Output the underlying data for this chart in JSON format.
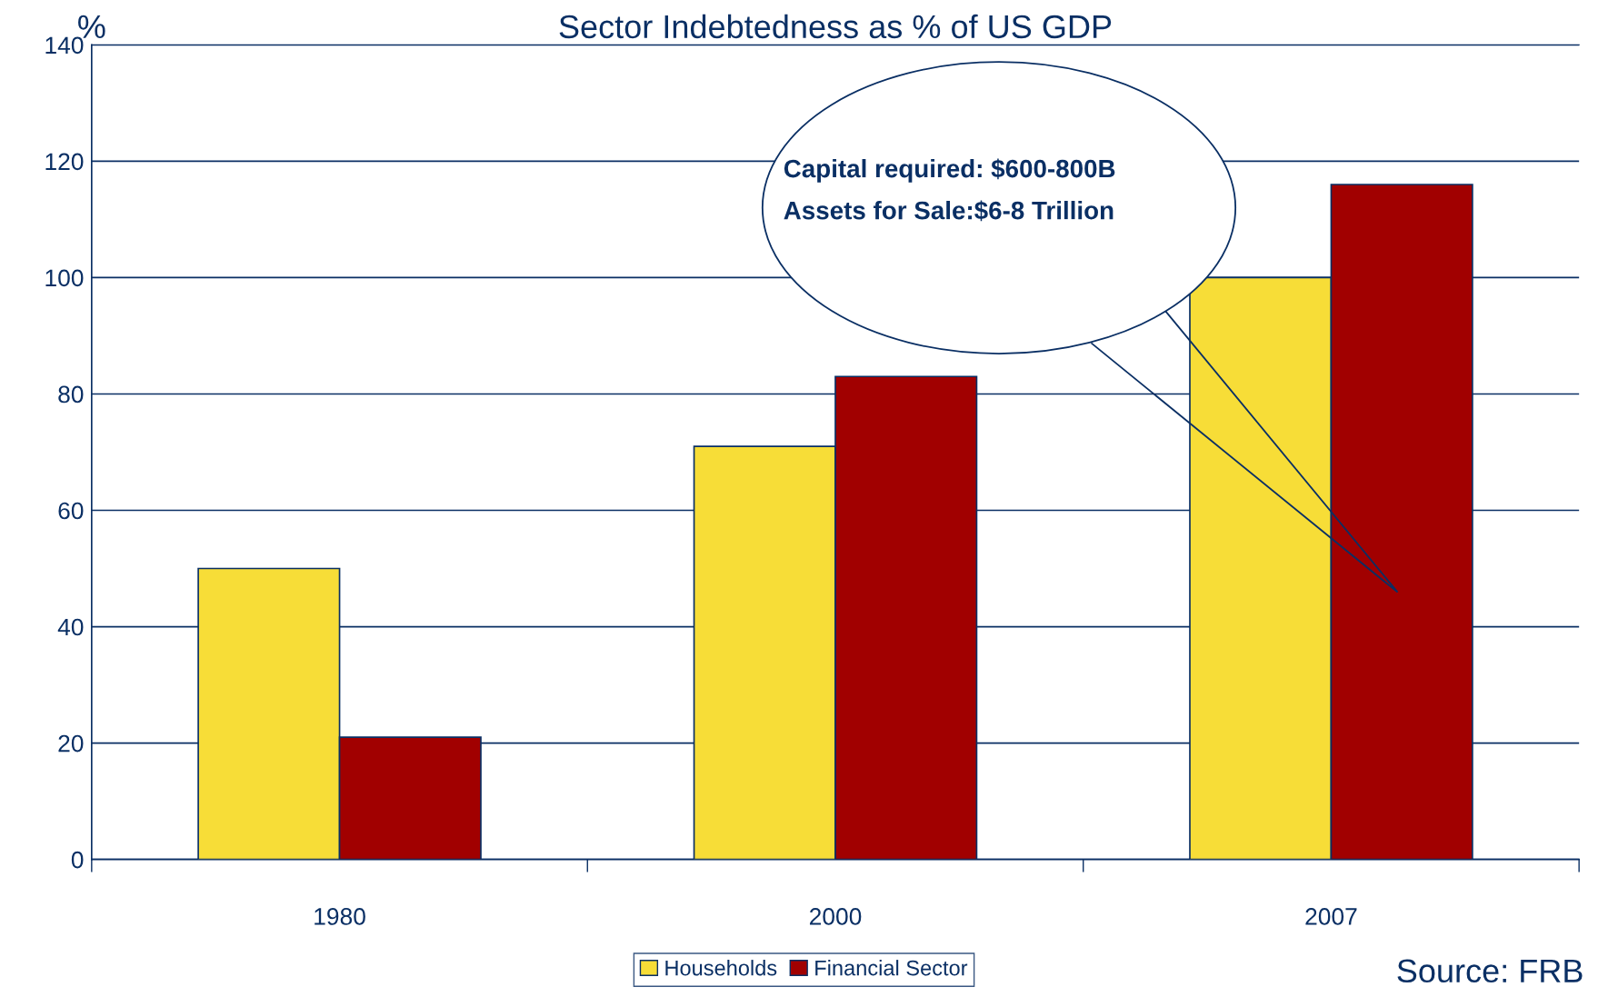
{
  "chart_data": {
    "type": "bar",
    "title": "Sector Indebtedness as % of US GDP",
    "ylabel": "%",
    "categories": [
      "1980",
      "2000",
      "2007"
    ],
    "series": [
      {
        "name": "Households",
        "color": "#f7dd37",
        "values": [
          50,
          71,
          100
        ]
      },
      {
        "name": "Financial Sector",
        "color": "#a10000",
        "values": [
          21,
          83,
          116
        ]
      }
    ],
    "ylim": [
      0,
      140
    ],
    "yticks": [
      0,
      20,
      40,
      60,
      80,
      100,
      120,
      140
    ],
    "grid": "y",
    "legend": "bottom",
    "annotations": [
      "Capital required: $600-800B\nAssets for Sale:$6-8 Trillion",
      "Source: FRB"
    ]
  }
}
